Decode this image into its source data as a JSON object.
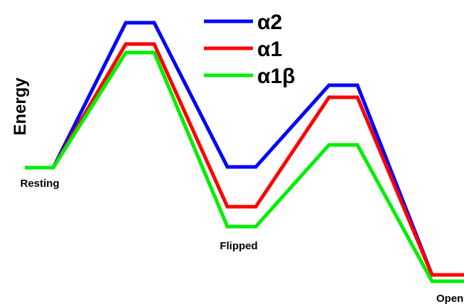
{
  "axis_label": "Energy",
  "legend": [
    {
      "name": "α2",
      "color": "#0000ff"
    },
    {
      "name": "α1",
      "color": "#ff0000"
    },
    {
      "name": "α1β",
      "color": "#00ee00"
    }
  ],
  "states": [
    "Resting",
    "Flipped",
    "Open"
  ]
}
